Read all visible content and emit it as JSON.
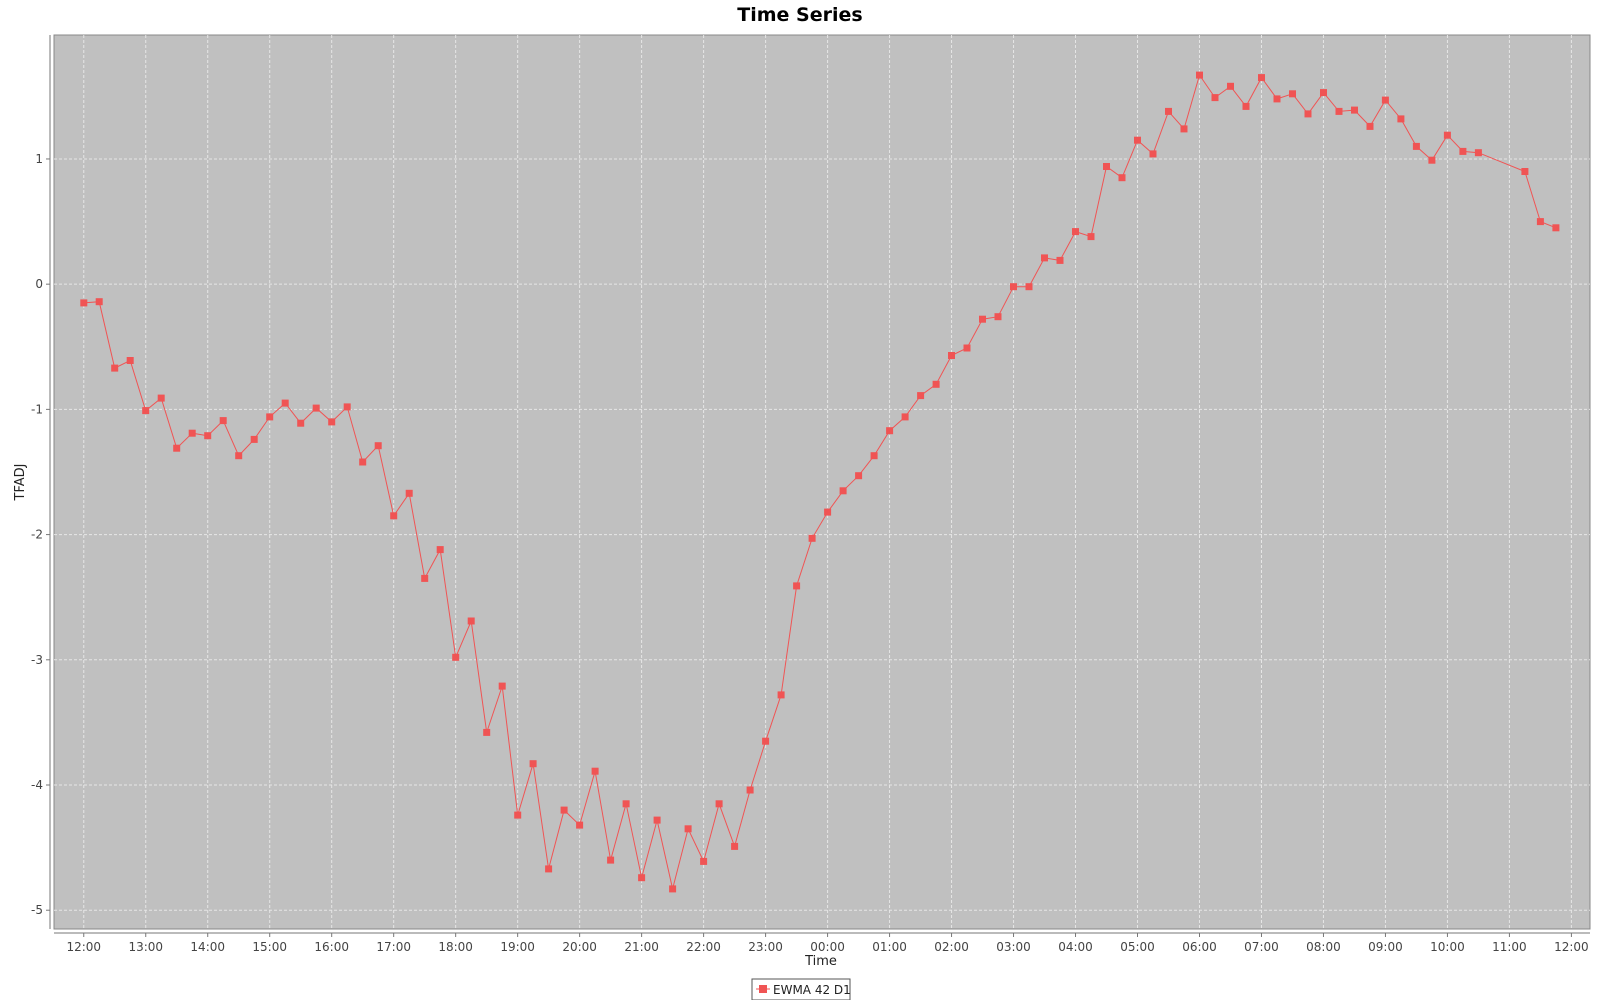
{
  "chart_data": {
    "type": "line",
    "title": "Time Series",
    "xlabel": "Time",
    "ylabel": "TFADJ",
    "x_tick_labels": [
      "12:00",
      "13:00",
      "14:00",
      "15:00",
      "16:00",
      "17:00",
      "18:00",
      "19:00",
      "20:00",
      "21:00",
      "22:00",
      "23:00",
      "00:00",
      "01:00",
      "02:00",
      "03:00",
      "04:00",
      "05:00",
      "06:00",
      "07:00",
      "08:00",
      "09:00",
      "10:00",
      "11:00",
      "12:00"
    ],
    "y_ticks": [
      -5,
      -4,
      -3,
      -2,
      -1,
      0,
      1
    ],
    "ylim": [
      -5.15,
      1.99
    ],
    "xlim_hours": [
      -0.48,
      24.3
    ],
    "grid": true,
    "legend_position": "bottom-center",
    "colors": {
      "series": "#f05454",
      "plot_bg": "#c0c0c0",
      "grid": "#e6e6e6"
    },
    "series": [
      {
        "name": "EWMA 42 D1",
        "x_hours_from_first_tick": [
          0,
          0.25,
          0.5,
          0.75,
          1,
          1.25,
          1.5,
          1.75,
          2,
          2.25,
          2.5,
          2.75,
          3,
          3.25,
          3.5,
          3.75,
          4,
          4.25,
          4.5,
          4.75,
          5,
          5.25,
          5.5,
          5.75,
          6,
          6.25,
          6.5,
          6.75,
          7,
          7.25,
          7.5,
          7.75,
          8,
          8.25,
          8.5,
          8.75,
          9,
          9.25,
          9.5,
          9.75,
          10,
          10.25,
          10.5,
          10.75,
          11,
          11.25,
          11.5,
          11.75,
          12,
          12.25,
          12.5,
          12.75,
          13,
          13.25,
          13.5,
          13.75,
          14,
          14.25,
          14.5,
          14.75,
          15,
          15.25,
          15.5,
          15.75,
          16,
          16.25,
          16.5,
          16.75,
          17,
          17.25,
          17.5,
          17.75,
          18,
          18.25,
          18.5,
          18.75,
          19,
          19.25,
          19.5,
          19.75,
          20,
          20.25,
          20.5,
          20.75,
          21,
          21.25,
          21.5,
          21.75,
          22,
          22.25,
          22.5,
          23.25,
          23.5,
          23.75
        ],
        "values": [
          -0.15,
          -0.14,
          -0.67,
          -0.61,
          -1.01,
          -0.91,
          -1.31,
          -1.19,
          -1.21,
          -1.09,
          -1.37,
          -1.24,
          -1.06,
          -0.95,
          -1.11,
          -0.99,
          -1.1,
          -0.98,
          -1.42,
          -1.29,
          -1.85,
          -1.67,
          -2.35,
          -2.12,
          -2.98,
          -2.69,
          -3.58,
          -3.21,
          -4.24,
          -3.83,
          -4.67,
          -4.2,
          -4.32,
          -3.89,
          -4.6,
          -4.15,
          -4.74,
          -4.28,
          -4.83,
          -4.35,
          -4.61,
          -4.15,
          -4.49,
          -4.04,
          -3.65,
          -3.28,
          -2.41,
          -2.03,
          -1.82,
          -1.65,
          -1.53,
          -1.37,
          -1.17,
          -1.06,
          -0.89,
          -0.8,
          -0.57,
          -0.51,
          -0.28,
          -0.26,
          -0.02,
          -0.02,
          0.21,
          0.19,
          0.42,
          0.38,
          0.94,
          0.85,
          1.15,
          1.04,
          1.38,
          1.24,
          1.67,
          1.49,
          1.58,
          1.42,
          1.65,
          1.48,
          1.52,
          1.36,
          1.53,
          1.38,
          1.39,
          1.26,
          1.47,
          1.32,
          1.1,
          0.99,
          1.19,
          1.06,
          1.05,
          0.9,
          0.5,
          0.45
        ]
      }
    ]
  }
}
